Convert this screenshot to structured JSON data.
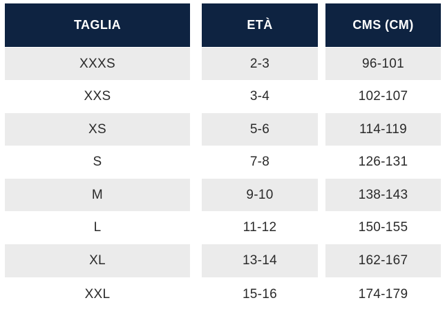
{
  "table": {
    "headers": [
      "TAGLIA",
      "ETÀ",
      "CMS (CM)"
    ],
    "rows": [
      [
        "XXXS",
        "2-3",
        "96-101"
      ],
      [
        "XXS",
        "3-4",
        "102-107"
      ],
      [
        "XS",
        "5-6",
        "114-119"
      ],
      [
        "S",
        "7-8",
        "126-131"
      ],
      [
        "M",
        "9-10",
        "138-143"
      ],
      [
        "L",
        "11-12",
        "150-155"
      ],
      [
        "XL",
        "13-14",
        "162-167"
      ],
      [
        "XXL",
        "15-16",
        "174-179"
      ]
    ]
  },
  "colors": {
    "header_background": "#0e2341",
    "header_text": "#ffffff",
    "stripe_background": "#ebebeb",
    "body_text": "#2a2a2a"
  }
}
